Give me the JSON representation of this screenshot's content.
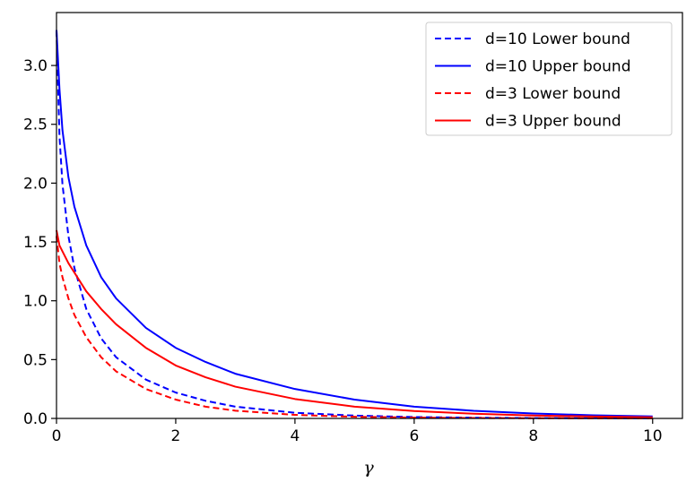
{
  "chart_data": {
    "type": "line",
    "title": "",
    "xlabel": "γ",
    "ylabel": "",
    "xlim": [
      0,
      10.5
    ],
    "ylim": [
      0,
      3.45
    ],
    "xticks": [
      0,
      2,
      4,
      6,
      8,
      10
    ],
    "xtick_labels": [
      "0",
      "2",
      "4",
      "6",
      "8",
      "10"
    ],
    "yticks": [
      0.0,
      0.5,
      1.0,
      1.5,
      2.0,
      2.5,
      3.0
    ],
    "ytick_labels": [
      "0.0",
      "0.5",
      "1.0",
      "1.5",
      "2.0",
      "2.5",
      "3.0"
    ],
    "grid": false,
    "legend_position": "top-right",
    "x": [
      0,
      0.05,
      0.1,
      0.2,
      0.3,
      0.5,
      0.75,
      1,
      1.5,
      2,
      2.5,
      3,
      4,
      5,
      6,
      7,
      8,
      9,
      10
    ],
    "series": [
      {
        "name": "d=10 Lower bound",
        "color": "#0000ff",
        "dash": true,
        "values": [
          3.3,
          2.4,
          1.99,
          1.55,
          1.28,
          0.93,
          0.68,
          0.52,
          0.33,
          0.22,
          0.15,
          0.1,
          0.048,
          0.024,
          0.012,
          0.006,
          0.003,
          0.0015,
          0.001
        ]
      },
      {
        "name": "d=10 Upper bound",
        "color": "#0000ff",
        "dash": false,
        "values": [
          3.3,
          2.8,
          2.45,
          2.05,
          1.8,
          1.47,
          1.2,
          1.02,
          0.77,
          0.6,
          0.48,
          0.38,
          0.25,
          0.16,
          0.1,
          0.065,
          0.042,
          0.027,
          0.017
        ]
      },
      {
        "name": "d=3 Lower bound",
        "color": "#ff0000",
        "dash": true,
        "values": [
          1.55,
          1.32,
          1.2,
          1.02,
          0.88,
          0.69,
          0.52,
          0.4,
          0.25,
          0.16,
          0.1,
          0.066,
          0.03,
          0.014,
          0.007,
          0.0035,
          0.002,
          0.001,
          0.0005
        ]
      },
      {
        "name": "d=3 Upper bound",
        "color": "#ff0000",
        "dash": false,
        "values": [
          1.6,
          1.47,
          1.42,
          1.32,
          1.24,
          1.08,
          0.93,
          0.8,
          0.6,
          0.45,
          0.35,
          0.27,
          0.165,
          0.1,
          0.063,
          0.04,
          0.025,
          0.016,
          0.01
        ]
      }
    ]
  }
}
